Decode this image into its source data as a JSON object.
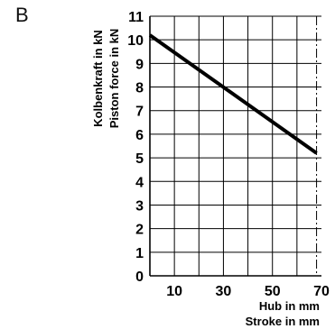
{
  "panel_label": "B",
  "chart_data": {
    "type": "line",
    "title": "",
    "ylabel_lines": [
      "Kolbenkraft in kN",
      "Piston force in kN"
    ],
    "xlabel_lines": [
      "Hub in mm",
      "Stroke in mm"
    ],
    "xlim": [
      0,
      70
    ],
    "ylim": [
      0,
      11
    ],
    "x_ticks": [
      10,
      30,
      50,
      70
    ],
    "y_ticks": [
      0,
      1,
      2,
      3,
      4,
      5,
      6,
      7,
      8,
      9,
      10,
      11
    ],
    "grid": true,
    "max_stroke_marker": 68,
    "series": [
      {
        "x": [
          0,
          68
        ],
        "y": [
          10.2,
          5.2
        ]
      }
    ]
  }
}
